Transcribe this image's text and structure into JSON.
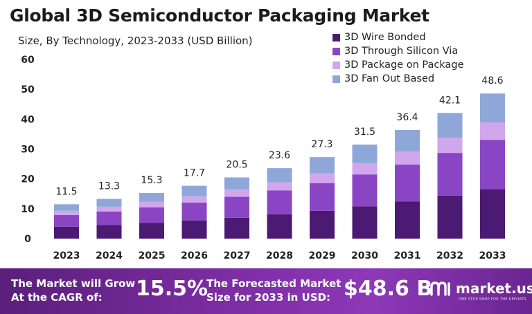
{
  "title": "Global 3D Semiconductor Packaging Market",
  "subtitle": "Size, By Technology, 2023-2033 (USD Billion)",
  "colors": {
    "wire_bonded": "#4b1a72",
    "through_silicon_via": "#8a45c4",
    "package_on_package": "#d0a6ec",
    "fan_out": "#8fa7d8"
  },
  "chart_data": {
    "type": "bar",
    "stacked": true,
    "categories": [
      "2023",
      "2024",
      "2025",
      "2026",
      "2027",
      "2028",
      "2029",
      "2030",
      "2031",
      "2032",
      "2033"
    ],
    "totals": [
      11.5,
      13.3,
      15.3,
      17.7,
      20.5,
      23.6,
      27.3,
      31.5,
      36.4,
      42.1,
      48.6
    ],
    "total_labels": [
      "11.5",
      "13.3",
      "15.3",
      "17.7",
      "20.5",
      "23.6",
      "27.3",
      "31.5",
      "36.4",
      "42.1",
      "48.6"
    ],
    "series": [
      {
        "name": "3D Wire Bonded",
        "color": "#4b1a72",
        "values": [
          4.0,
          4.6,
          5.3,
          6.1,
          7.0,
          8.1,
          9.3,
          10.8,
          12.4,
          14.4,
          16.6
        ]
      },
      {
        "name": "3D Through Silicon Via",
        "color": "#8a45c4",
        "values": [
          3.9,
          4.5,
          5.2,
          6.0,
          7.0,
          8.0,
          9.3,
          10.7,
          12.4,
          14.3,
          16.5
        ]
      },
      {
        "name": "3D Package on Package",
        "color": "#d0a6ec",
        "values": [
          1.4,
          1.6,
          1.8,
          2.1,
          2.5,
          2.8,
          3.3,
          3.8,
          4.4,
          5.1,
          5.8
        ]
      },
      {
        "name": "3D Fan Out Based",
        "color": "#8fa7d8",
        "values": [
          2.2,
          2.6,
          3.0,
          3.5,
          4.0,
          4.7,
          5.4,
          6.2,
          7.2,
          8.3,
          9.7
        ]
      }
    ],
    "ylim": [
      0,
      60
    ],
    "yticks": [
      "0",
      "10",
      "20",
      "30",
      "40",
      "50",
      "60"
    ],
    "grid": false,
    "legend_position": "top-right"
  },
  "legend": [
    {
      "label": "3D Wire Bonded",
      "color": "#4b1a72"
    },
    {
      "label": "3D Through Silicon Via",
      "color": "#8a45c4"
    },
    {
      "label": "3D Package on Package",
      "color": "#d0a6ec"
    },
    {
      "label": "3D Fan Out Based",
      "color": "#8fa7d8"
    }
  ],
  "footer": {
    "cagr_text_line1": "The Market will Grow",
    "cagr_text_line2": "At the CAGR of:",
    "cagr_value": "15.5%",
    "forecast_text_line1": "The Forecasted Market",
    "forecast_text_line2": "Size for 2033 in USD:",
    "forecast_value": "$48.6 B",
    "brand": "market.us",
    "brand_tagline": "ONE STOP SHOP FOR THE REPORTS"
  }
}
